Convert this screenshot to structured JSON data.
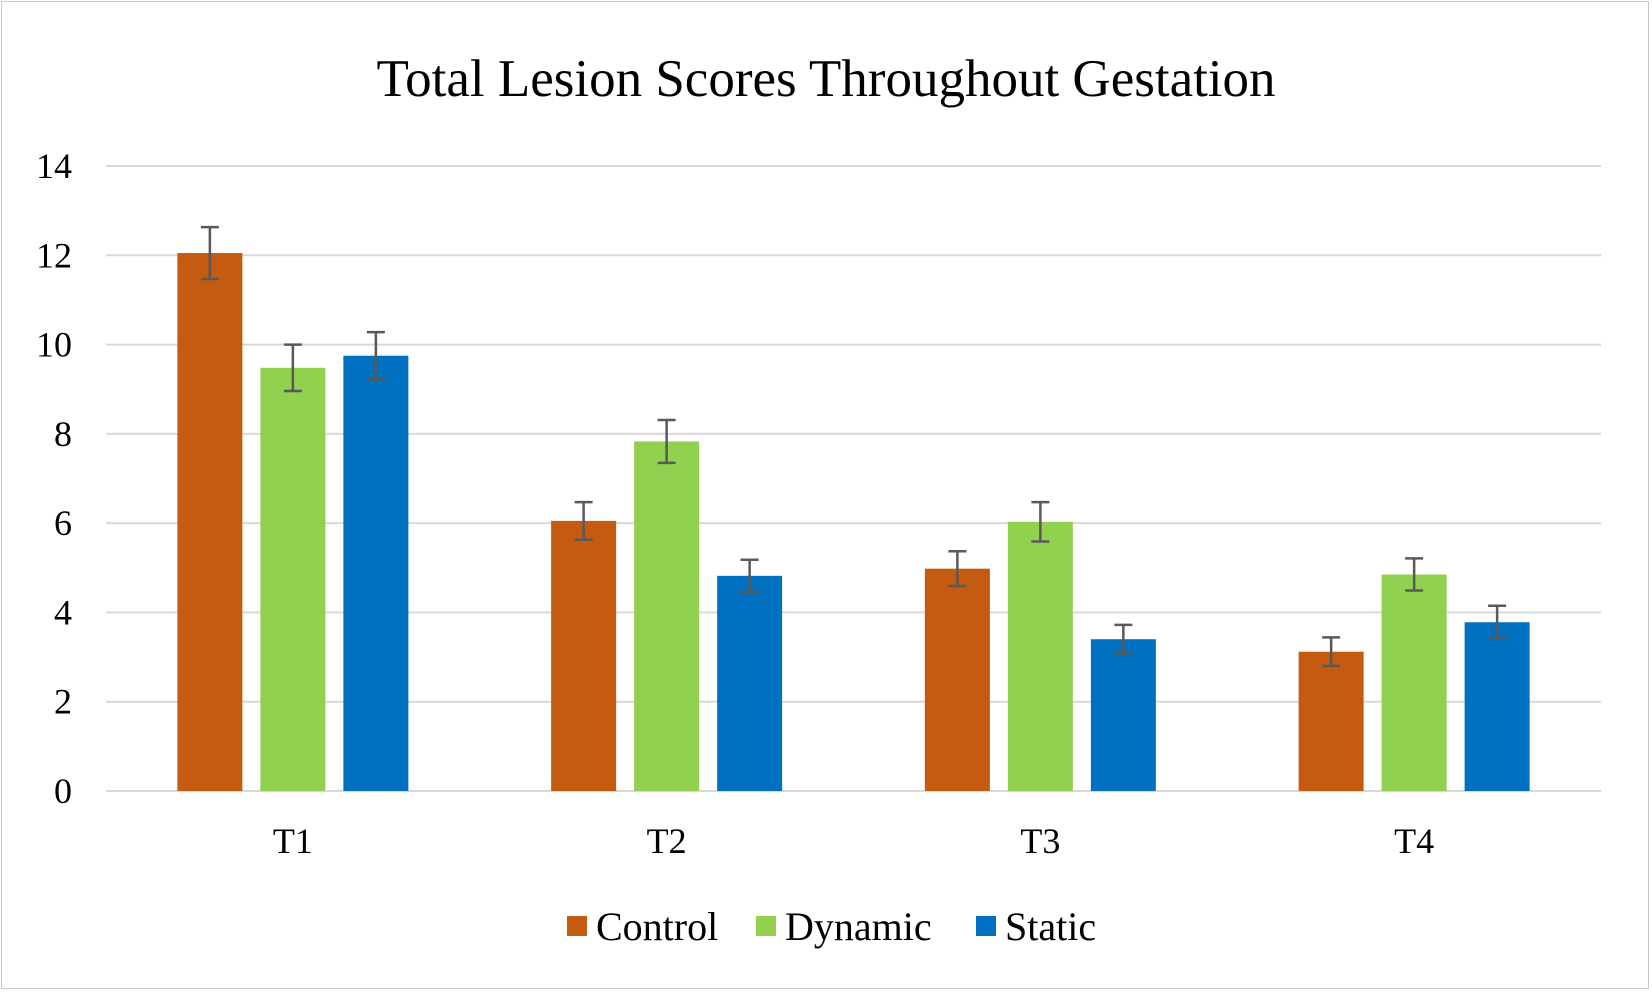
{
  "chart_data": {
    "type": "bar",
    "title": "Total Lesion Scores Throughout Gestation",
    "xlabel": "",
    "ylabel": "",
    "categories": [
      "T1",
      "T2",
      "T3",
      "T4"
    ],
    "ylim": [
      0,
      14
    ],
    "yticks": [
      0,
      2,
      4,
      6,
      8,
      10,
      12,
      14
    ],
    "grid": true,
    "legend_position": "bottom",
    "series": [
      {
        "name": "Control",
        "color": "#C55A11",
        "values": [
          12.05,
          6.05,
          4.98,
          3.12
        ],
        "error": [
          0.58,
          0.42,
          0.39,
          0.32
        ]
      },
      {
        "name": "Dynamic",
        "color": "#92D050",
        "values": [
          9.48,
          7.83,
          6.03,
          4.85
        ],
        "error": [
          0.52,
          0.48,
          0.44,
          0.36
        ]
      },
      {
        "name": "Static",
        "color": "#0070C0",
        "values": [
          9.75,
          4.82,
          3.4,
          3.78
        ],
        "error": [
          0.53,
          0.36,
          0.32,
          0.37
        ]
      }
    ],
    "error_bar_color": "#595959",
    "gridline_color": "#d9d9d9"
  }
}
